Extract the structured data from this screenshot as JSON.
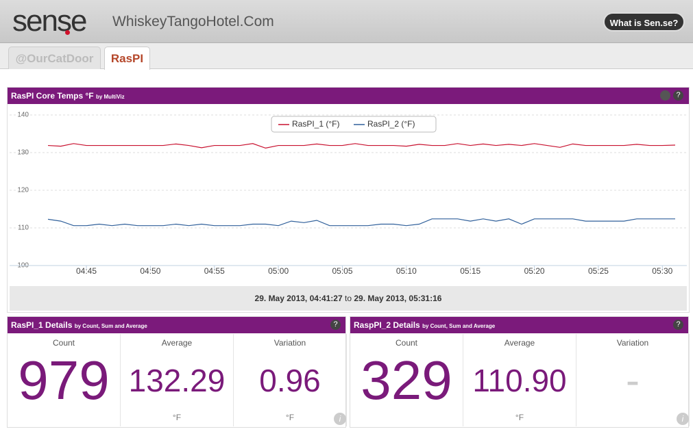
{
  "header": {
    "logo": "sense",
    "site": "WhiskeyTangoHotel.Com",
    "button": "What is Sen.se?"
  },
  "tabs": [
    "@OurCatDoor",
    "RasPI"
  ],
  "chart_data": {
    "type": "line",
    "title": "RasPI Core Temps °F",
    "subtitle": "by MultiViz",
    "x": [
      "04:42",
      "04:43",
      "04:44",
      "04:45",
      "04:46",
      "04:47",
      "04:48",
      "04:49",
      "04:50",
      "04:51",
      "04:52",
      "04:53",
      "04:54",
      "04:55",
      "04:56",
      "04:57",
      "04:58",
      "04:59",
      "05:00",
      "05:01",
      "05:02",
      "05:03",
      "05:04",
      "05:05",
      "05:06",
      "05:07",
      "05:08",
      "05:09",
      "05:10",
      "05:11",
      "05:12",
      "05:13",
      "05:14",
      "05:15",
      "05:16",
      "05:17",
      "05:18",
      "05:19",
      "05:20",
      "05:21",
      "05:22",
      "05:23",
      "05:24",
      "05:25",
      "05:26",
      "05:27",
      "05:28",
      "05:29",
      "05:30",
      "05:31"
    ],
    "series": [
      {
        "name": "RasPI_1 (°F)",
        "color": "#c8102e",
        "values": [
          131.9,
          131.7,
          132.4,
          131.9,
          131.9,
          131.9,
          131.9,
          131.9,
          131.9,
          131.9,
          132.3,
          131.9,
          131.3,
          131.9,
          131.9,
          131.9,
          132.4,
          131.2,
          131.9,
          131.9,
          131.9,
          132.3,
          131.9,
          131.9,
          132.4,
          131.9,
          131.9,
          131.9,
          131.7,
          132.2,
          131.9,
          131.9,
          132.4,
          131.9,
          132.3,
          131.9,
          132.2,
          131.9,
          132.4,
          131.9,
          131.4,
          132.3,
          131.9,
          131.9,
          131.9,
          131.9,
          132.2,
          131.9,
          131.9,
          132.0
        ]
      },
      {
        "name": "RasPI_2 (°F)",
        "color": "#2f5f9a",
        "values": [
          112.3,
          111.8,
          110.6,
          110.6,
          111.0,
          110.6,
          111.0,
          110.6,
          110.6,
          110.6,
          111.0,
          110.6,
          111.0,
          110.6,
          110.6,
          110.6,
          111.0,
          111.0,
          110.6,
          111.8,
          111.4,
          112.0,
          110.6,
          110.6,
          110.6,
          110.6,
          111.0,
          111.0,
          110.6,
          111.0,
          112.4,
          112.4,
          112.4,
          111.8,
          112.4,
          111.8,
          112.4,
          111.0,
          112.4,
          112.4,
          112.4,
          112.4,
          111.8,
          111.8,
          111.8,
          111.8,
          112.4,
          112.4,
          112.4,
          112.4
        ]
      }
    ],
    "xlim": [
      "04:42",
      "05:31"
    ],
    "xticks": [
      "04:45",
      "04:50",
      "04:55",
      "05:00",
      "05:05",
      "05:10",
      "05:15",
      "05:20",
      "05:25",
      "05:30"
    ],
    "ylim": [
      100,
      140
    ],
    "yticks": [
      100,
      110,
      120,
      130,
      140
    ],
    "grid": true,
    "range": {
      "from": "29. May 2013, 04:41:27",
      "joiner": "to",
      "to": "29. May 2013, 05:31:16"
    }
  },
  "panels": [
    {
      "title": "RasPI_1 Details",
      "subtitle": "by Count, Sum and Average",
      "cells": [
        {
          "label": "Count",
          "value": "979"
        },
        {
          "label": "Average",
          "value": "132.29",
          "unit": "°F"
        },
        {
          "label": "Variation",
          "value": "0.96",
          "unit": "°F"
        }
      ]
    },
    {
      "title": "RaspPI_2 Details",
      "subtitle": "by Count, Sum and Average",
      "cells": [
        {
          "label": "Count",
          "value": "329"
        },
        {
          "label": "Average",
          "value": "110.90",
          "unit": "°F"
        },
        {
          "label": "Variation",
          "value": "-"
        }
      ]
    }
  ]
}
